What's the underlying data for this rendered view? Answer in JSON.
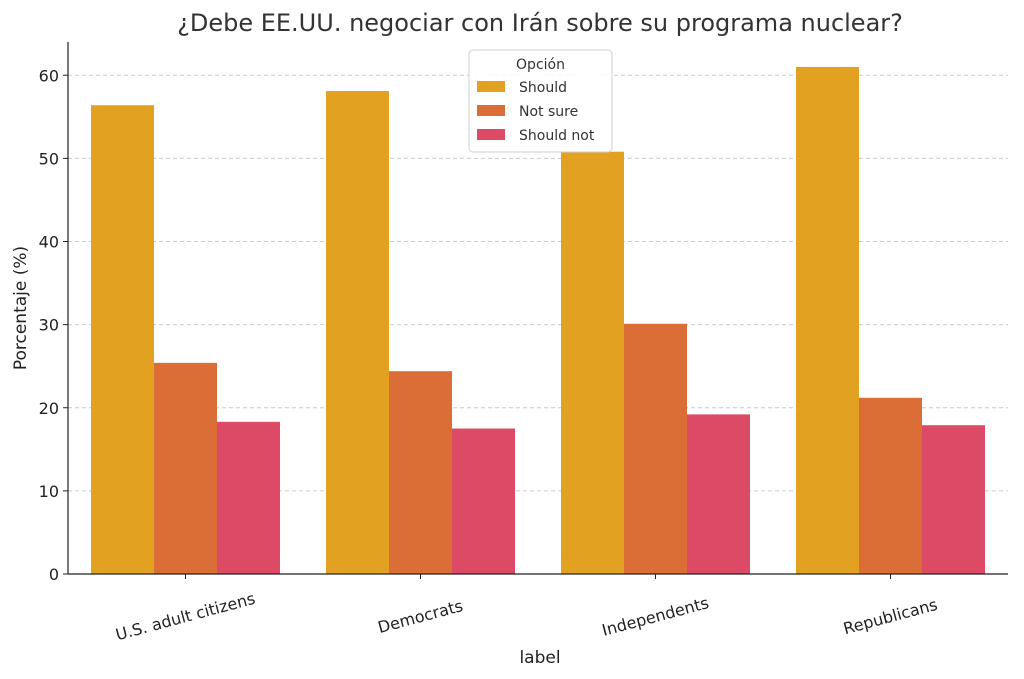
{
  "chart_data": {
    "type": "bar",
    "title": "¿Debe EE.UU. negociar con Irán sobre su programa nuclear?",
    "xlabel": "label",
    "ylabel": "Porcentaje (%)",
    "categories": [
      "U.S. adult citizens",
      "Democrats",
      "Independents",
      "Republicans"
    ],
    "series": [
      {
        "name": "Should",
        "color": "#E2A120",
        "values": [
          56.4,
          58.1,
          50.8,
          61.0
        ]
      },
      {
        "name": "Not sure",
        "color": "#DB6D37",
        "values": [
          25.4,
          24.4,
          30.1,
          21.2
        ]
      },
      {
        "name": "Should not",
        "color": "#DD4A66",
        "values": [
          18.3,
          17.5,
          19.2,
          17.9
        ]
      }
    ],
    "ylim": [
      0,
      64
    ],
    "yticks": [
      0,
      10,
      20,
      30,
      40,
      50,
      60
    ],
    "grid": true,
    "legend": {
      "title": "Opción",
      "placement": "top-center"
    }
  }
}
